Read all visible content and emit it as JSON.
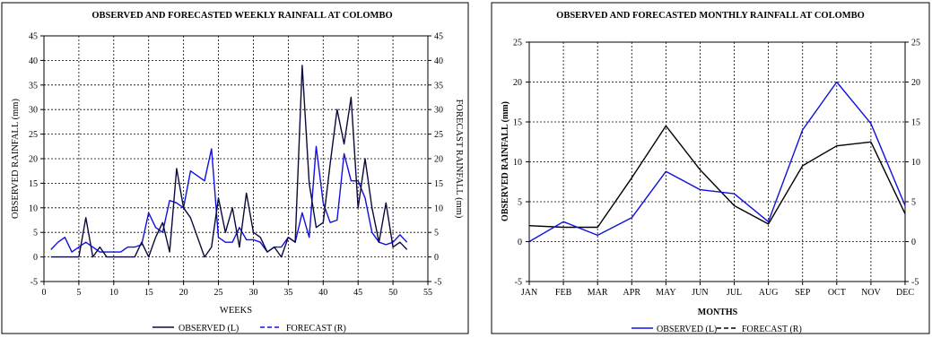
{
  "colors": {
    "observed_weekly": "#0a0a3a",
    "forecast": "#1010e0",
    "observed_monthly_forecast": "#000000",
    "grid": "#000000"
  },
  "chart_data": [
    {
      "type": "line",
      "title": "OBSERVED AND FORECASTED WEEKLY RAINFALL AT COLOMBO",
      "xlabel": "WEEKS",
      "ylabel": "OBSERVED RAINFALL (mm)",
      "ylabel_right": "FORECAST RAINFALL (mm)",
      "xlim": [
        0,
        55
      ],
      "ylim": [
        -5,
        45
      ],
      "xticks": [
        "0",
        "5",
        "10",
        "15",
        "20",
        "25",
        "30",
        "35",
        "40",
        "45",
        "50",
        "55"
      ],
      "yticks": [
        "-5",
        "0",
        "5",
        "10",
        "15",
        "20",
        "25",
        "30",
        "35",
        "40",
        "45"
      ],
      "grid": true,
      "legend": [
        "OBSERVED (L)",
        "FORECAST (R)"
      ],
      "series": [
        {
          "name": "OBSERVED (L)",
          "style": "solid",
          "color_key": "observed_weekly",
          "x": [
            1,
            2,
            3,
            4,
            5,
            6,
            7,
            8,
            9,
            10,
            11,
            12,
            13,
            14,
            15,
            16,
            17,
            18,
            19,
            20,
            21,
            22,
            23,
            24,
            25,
            26,
            27,
            28,
            29,
            30,
            31,
            32,
            33,
            34,
            35,
            36,
            37,
            38,
            39,
            40,
            41,
            42,
            43,
            44,
            45,
            46,
            47,
            48,
            49,
            50,
            51,
            52
          ],
          "values": [
            0,
            0,
            0,
            0,
            0,
            8,
            0,
            2,
            0,
            0,
            0,
            0,
            0,
            3,
            0,
            4,
            7,
            1,
            18,
            10,
            8,
            4,
            0,
            2,
            12,
            5,
            10,
            2,
            13,
            5,
            4,
            1,
            2,
            0,
            4,
            3,
            39,
            15,
            6,
            7,
            19,
            30,
            23,
            32.5,
            10,
            20,
            10,
            3,
            11,
            2,
            3,
            1.5
          ]
        },
        {
          "name": "FORECAST (R)",
          "style": "solid",
          "color_key": "forecast",
          "x": [
            1,
            2,
            3,
            4,
            5,
            6,
            7,
            8,
            9,
            10,
            11,
            12,
            13,
            14,
            15,
            16,
            17,
            18,
            19,
            20,
            21,
            22,
            23,
            24,
            25,
            26,
            27,
            28,
            29,
            30,
            31,
            32,
            33,
            34,
            35,
            36,
            37,
            38,
            39,
            40,
            41,
            42,
            43,
            44,
            45,
            46,
            47,
            48,
            49,
            50,
            51,
            52
          ],
          "values": [
            1.5,
            3,
            4,
            1,
            2,
            3,
            2,
            1,
            1,
            1,
            1,
            2,
            2,
            2.5,
            9,
            6,
            5,
            11.5,
            11,
            10,
            17.5,
            16.5,
            15.5,
            22,
            4,
            3,
            3,
            6,
            3.5,
            3.5,
            3,
            1,
            2,
            2,
            4,
            3,
            9,
            4,
            22.5,
            11,
            7,
            7.5,
            21,
            15.5,
            15.5,
            12,
            5,
            3,
            2.5,
            3,
            4.5,
            3
          ]
        }
      ]
    },
    {
      "type": "line",
      "title": "OBSERVED AND FORECASTED MONTHLY RAINFALL AT COLOMBO",
      "xlabel": "MONTHS",
      "ylabel": "OBSERVED RAINFALL (mm)",
      "categories": [
        "JAN",
        "FEB",
        "MAR",
        "APR",
        "MAY",
        "JUN",
        "JUL",
        "AUG",
        "SEP",
        "OCT",
        "NOV",
        "DEC"
      ],
      "ylim": [
        -5,
        25
      ],
      "yticks": [
        "-5",
        "0",
        "5",
        "10",
        "15",
        "20",
        "25"
      ],
      "grid": true,
      "legend": [
        "OBSERVED (L)",
        "FORECAST (R)"
      ],
      "series": [
        {
          "name": "OBSERVED (L)",
          "style": "solid",
          "color_key": "forecast",
          "values": [
            0,
            2.5,
            0.8,
            3,
            8.8,
            6.5,
            6,
            2.5,
            14,
            20,
            14.8,
            4.5
          ]
        },
        {
          "name": "FORECAST (R)",
          "style": "solid",
          "color_key": "observed_monthly_forecast",
          "values": [
            2,
            1.8,
            1.8,
            8,
            14.5,
            9,
            4.5,
            2.2,
            9.5,
            12,
            12.5,
            3.5
          ]
        }
      ]
    }
  ]
}
